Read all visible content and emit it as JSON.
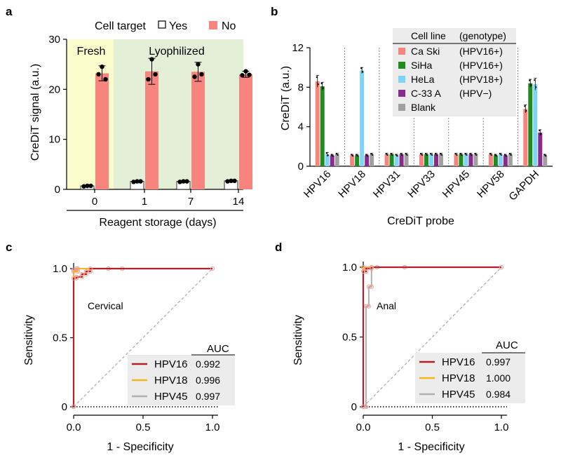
{
  "panels": {
    "a": "a",
    "b": "b",
    "c": "c",
    "d": "d"
  },
  "colors": {
    "yes_fill": "#ffffff",
    "no_fill": "#f8847e",
    "fresh_bg": "#fcfccc",
    "lyo_bg": "#e4efd8",
    "caski": "#f8847e",
    "siha": "#1e8c1e",
    "hela": "#7fd3f6",
    "c33a": "#882a90",
    "blank": "#a0a0a0",
    "hpv16": "#b3202a",
    "hpv18": "#f2b81a",
    "hpv45": "#b0b0b0",
    "roc_marker": "#f39a8e"
  },
  "chart_data": [
    {
      "type": "bar",
      "panel": "a",
      "legend_title": "Cell target",
      "regions": [
        "Fresh",
        "Lyophilized"
      ],
      "categories": [
        "0",
        "1",
        "7",
        "14"
      ],
      "xlabel": "Reagent storage (days)",
      "ylabel": "CreDiT signal (a.u.)",
      "ylim": [
        0,
        30
      ],
      "yticks": [
        "0",
        "10",
        "20",
        "30"
      ],
      "series": [
        {
          "name": "Yes",
          "values": [
            0.7,
            1.6,
            1.6,
            1.7
          ],
          "err": [
            0.1,
            0.1,
            0.1,
            0.1
          ],
          "points": [
            [
              0.6,
              0.7,
              0.7
            ],
            [
              1.5,
              1.6,
              1.6
            ],
            [
              1.5,
              1.6,
              1.6
            ],
            [
              1.6,
              1.7,
              1.7
            ]
          ]
        },
        {
          "name": "No",
          "values": [
            23.2,
            23.6,
            23.5,
            23.0
          ],
          "err": [
            1.5,
            2.6,
            1.9,
            0.6
          ],
          "points": [
            [
              24.5,
              23.0,
              22.0
            ],
            [
              26.0,
              22.0,
              23.0
            ],
            [
              25.0,
              22.5,
              23.0
            ],
            [
              23.6,
              22.8,
              22.9
            ]
          ]
        }
      ]
    },
    {
      "type": "bar",
      "panel": "b",
      "legend_headers": [
        "Cell line",
        "(genotype)"
      ],
      "categories": [
        "HPV16",
        "HPV18",
        "HPV31",
        "HPV33",
        "HPV45",
        "HPV58",
        "GAPDH"
      ],
      "xlabel": "CreDiT probe",
      "ylabel": "CreDiT (a.u.)",
      "ylim": [
        0,
        12
      ],
      "yticks": [
        "0",
        "4",
        "8",
        "12"
      ],
      "series": [
        {
          "name": "Ca Ski",
          "genotype": "(HPV16+)",
          "values": [
            8.6,
            1.1,
            1.2,
            1.2,
            1.2,
            1.2,
            5.8
          ],
          "err": [
            0.6,
            0.1,
            0.1,
            0.1,
            0.1,
            0.1,
            0.4
          ]
        },
        {
          "name": "SiHa",
          "genotype": "(HPV16+)",
          "values": [
            8.1,
            1.1,
            1.2,
            1.2,
            1.2,
            1.1,
            8.4
          ],
          "err": [
            0.4,
            0.1,
            0.1,
            0.1,
            0.1,
            0.1,
            0.4
          ]
        },
        {
          "name": "HeLa",
          "genotype": "(HPV18+)",
          "values": [
            1.2,
            9.7,
            1.1,
            1.2,
            1.2,
            1.2,
            8.3
          ],
          "err": [
            0.2,
            0.3,
            0.1,
            0.1,
            0.1,
            0.1,
            0.6
          ]
        },
        {
          "name": "C-33 A",
          "genotype": "(HPV−)",
          "values": [
            1.1,
            1.1,
            1.2,
            1.2,
            1.2,
            1.1,
            3.4
          ],
          "err": [
            0.1,
            0.1,
            0.1,
            0.1,
            0.1,
            0.1,
            0.3
          ]
        },
        {
          "name": "Blank",
          "genotype": "",
          "values": [
            1.2,
            1.2,
            1.2,
            1.2,
            1.2,
            1.2,
            1.1
          ],
          "err": [
            0.1,
            0.1,
            0.1,
            0.1,
            0.1,
            0.1,
            0.1
          ]
        }
      ]
    },
    {
      "type": "line",
      "panel": "c",
      "annotation": "Cervical",
      "xlabel": "1 - Specificity",
      "ylabel": "Sensitivity",
      "xlim": [
        0,
        1
      ],
      "ylim": [
        0,
        1
      ],
      "xticks": [
        "0.0",
        "0.5",
        "1.0"
      ],
      "yticks": [
        "0",
        "0.5",
        "1.0"
      ],
      "auc_header": "AUC",
      "series": [
        {
          "name": "HPV16",
          "auc": "0.992",
          "points": [
            [
              0,
              0
            ],
            [
              0,
              0.93
            ],
            [
              0.02,
              0.93
            ],
            [
              0.02,
              0.94
            ],
            [
              0.06,
              0.94
            ],
            [
              0.06,
              0.96
            ],
            [
              0.09,
              0.96
            ],
            [
              0.09,
              0.98
            ],
            [
              0.12,
              0.98
            ],
            [
              0.12,
              1.0
            ],
            [
              1.0,
              1.0
            ]
          ]
        },
        {
          "name": "HPV18",
          "auc": "0.996",
          "points": [
            [
              0,
              0
            ],
            [
              0,
              0.98
            ],
            [
              0.03,
              0.98
            ],
            [
              0.03,
              1.0
            ],
            [
              0.35,
              1.0
            ]
          ]
        },
        {
          "name": "HPV45",
          "auc": "0.997",
          "points": [
            [
              0,
              0
            ],
            [
              0,
              0.99
            ],
            [
              0.02,
              0.99
            ],
            [
              0.02,
              1.0
            ],
            [
              0.25,
              1.0
            ]
          ]
        }
      ]
    },
    {
      "type": "line",
      "panel": "d",
      "annotation": "Anal",
      "xlabel": "1 - Specificity",
      "ylabel": "Sensitivity",
      "xlim": [
        0,
        1
      ],
      "ylim": [
        0,
        1
      ],
      "xticks": [
        "0.0",
        "0.5",
        "1.0"
      ],
      "yticks": [
        "0",
        "0.5",
        "1.0"
      ],
      "auc_header": "AUC",
      "series": [
        {
          "name": "HPV16",
          "auc": "0.997",
          "points": [
            [
              0,
              0
            ],
            [
              0,
              0.97
            ],
            [
              0.02,
              0.97
            ],
            [
              0.02,
              0.99
            ],
            [
              0.06,
              0.99
            ],
            [
              0.06,
              1.0
            ],
            [
              1.0,
              1.0
            ]
          ]
        },
        {
          "name": "HPV18",
          "auc": "1.000",
          "points": [
            [
              0,
              0
            ],
            [
              0,
              1.0
            ],
            [
              0.3,
              1.0
            ]
          ]
        },
        {
          "name": "HPV45",
          "auc": "0.984",
          "points": [
            [
              0,
              0
            ],
            [
              0.02,
              0
            ],
            [
              0.02,
              0.72
            ],
            [
              0.04,
              0.72
            ],
            [
              0.04,
              0.86
            ],
            [
              0.06,
              0.86
            ],
            [
              0.06,
              1.0
            ],
            [
              0.1,
              1.0
            ]
          ]
        }
      ]
    }
  ]
}
